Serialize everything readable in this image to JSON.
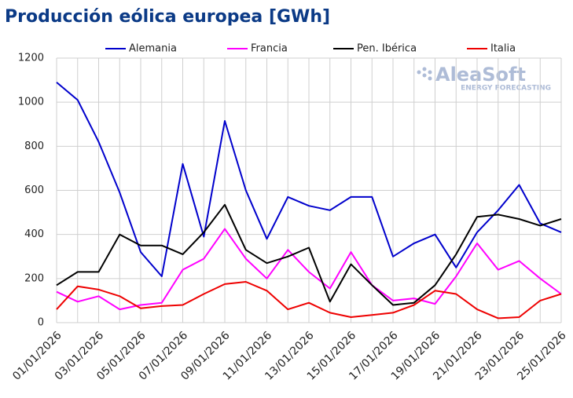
{
  "chart_data": {
    "type": "line",
    "title": "Producción eólica europea [GWh]",
    "watermark": {
      "brand": "AleaSoft",
      "tagline": "ENERGY FORECASTING"
    },
    "categories": [
      "01/01/2026",
      null,
      "03/01/2026",
      null,
      "05/01/2026",
      null,
      "07/01/2026",
      null,
      "09/01/2026",
      null,
      "11/01/2026",
      null,
      "13/01/2026",
      null,
      "15/01/2026",
      null,
      "17/01/2026",
      null,
      "19/01/2026",
      null,
      "21/01/2026",
      null,
      "23/01/2026",
      null,
      "25/01/2026"
    ],
    "series": [
      {
        "name": "Alemania",
        "color": "#0000cc",
        "values": [
          1090,
          1010,
          820,
          590,
          320,
          210,
          720,
          390,
          915,
          600,
          380,
          570,
          530,
          510,
          570,
          570,
          300,
          360,
          400,
          250,
          410,
          510,
          625,
          450,
          410
        ]
      },
      {
        "name": "Francia",
        "color": "#ff00ff",
        "values": [
          140,
          95,
          120,
          60,
          80,
          90,
          240,
          290,
          425,
          290,
          200,
          330,
          230,
          155,
          320,
          170,
          100,
          110,
          85,
          210,
          360,
          240,
          280,
          200,
          130
        ]
      },
      {
        "name": "Pen. Ibérica",
        "color": "#000000",
        "values": [
          170,
          230,
          230,
          400,
          350,
          350,
          310,
          410,
          535,
          330,
          270,
          300,
          340,
          95,
          265,
          170,
          80,
          90,
          170,
          310,
          480,
          490,
          470,
          440,
          470
        ]
      },
      {
        "name": "Italia",
        "color": "#ee0000",
        "values": [
          60,
          165,
          150,
          120,
          65,
          75,
          80,
          130,
          175,
          185,
          145,
          60,
          90,
          45,
          25,
          35,
          45,
          80,
          145,
          130,
          60,
          20,
          25,
          100,
          130
        ]
      }
    ],
    "ylim": [
      0,
      1200
    ],
    "yticks": [
      0,
      200,
      400,
      600,
      800,
      1000,
      1200
    ],
    "grid": true,
    "legend": "top"
  }
}
